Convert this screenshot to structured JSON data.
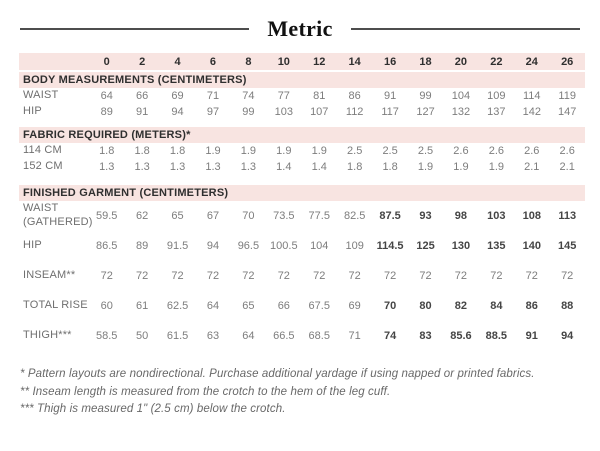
{
  "title": "Metric",
  "colors": {
    "band_pink": "#f8e4e1",
    "header_text": "#2f2f2f",
    "value_text": "#7d7d7d",
    "emphasis_text": "#454545",
    "rule": "#4d4d4d"
  },
  "table": {
    "sizes": [
      "0",
      "2",
      "4",
      "6",
      "8",
      "10",
      "12",
      "14",
      "16",
      "18",
      "20",
      "22",
      "24",
      "26"
    ],
    "sections": [
      {
        "header": "BODY MEASUREMENTS (CENTIMETERS)",
        "rows": [
          {
            "label": "WAIST",
            "values": [
              "64",
              "66",
              "69",
              "71",
              "74",
              "77",
              "81",
              "86",
              "91",
              "99",
              "104",
              "109",
              "114",
              "119"
            ],
            "emphasis_from": null
          },
          {
            "label": "HIP",
            "values": [
              "89",
              "91",
              "94",
              "97",
              "99",
              "103",
              "107",
              "112",
              "117",
              "127",
              "132",
              "137",
              "142",
              "147"
            ],
            "emphasis_from": null
          }
        ]
      },
      {
        "header": "FABRIC REQUIRED (METERS)*",
        "rows": [
          {
            "label": "114 CM",
            "values": [
              "1.8",
              "1.8",
              "1.8",
              "1.9",
              "1.9",
              "1.9",
              "1.9",
              "2.5",
              "2.5",
              "2.5",
              "2.6",
              "2.6",
              "2.6",
              "2.6"
            ],
            "emphasis_from": null
          },
          {
            "label": "152 CM",
            "values": [
              "1.3",
              "1.3",
              "1.3",
              "1.3",
              "1.3",
              "1.4",
              "1.4",
              "1.8",
              "1.8",
              "1.9",
              "1.9",
              "1.9",
              "2.1",
              "2.1"
            ],
            "emphasis_from": null
          }
        ]
      },
      {
        "header": "FINISHED GARMENT (CENTIMETERS)",
        "rows": [
          {
            "label": "WAIST (GATHERED)",
            "values": [
              "59.5",
              "62",
              "65",
              "67",
              "70",
              "73.5",
              "77.5",
              "82.5",
              "87.5",
              "93",
              "98",
              "103",
              "108",
              "113"
            ],
            "emphasis_from": 8
          },
          {
            "label": "HIP",
            "values": [
              "86.5",
              "89",
              "91.5",
              "94",
              "96.5",
              "100.5",
              "104",
              "109",
              "114.5",
              "125",
              "130",
              "135",
              "140",
              "145"
            ],
            "emphasis_from": 8
          },
          {
            "label": "INSEAM**",
            "values": [
              "72",
              "72",
              "72",
              "72",
              "72",
              "72",
              "72",
              "72",
              "72",
              "72",
              "72",
              "72",
              "72",
              "72"
            ],
            "emphasis_from": null
          },
          {
            "label": "TOTAL RISE",
            "values": [
              "60",
              "61",
              "62.5",
              "64",
              "65",
              "66",
              "67.5",
              "69",
              "70",
              "80",
              "82",
              "84",
              "86",
              "88"
            ],
            "emphasis_from": 8
          },
          {
            "label": "THIGH***",
            "values": [
              "58.5",
              "50",
              "61.5",
              "63",
              "64",
              "66.5",
              "68.5",
              "71",
              "74",
              "83",
              "85.6",
              "88.5",
              "91",
              "94"
            ],
            "emphasis_from": 8
          }
        ]
      }
    ]
  },
  "footnotes": [
    "* Pattern layouts are nondirectional. Purchase additional yardage if using napped or printed fabrics.",
    "** Inseam length is measured from the crotch to the hem of the leg cuff.",
    "*** Thigh is measured 1\" (2.5 cm) below the crotch."
  ]
}
